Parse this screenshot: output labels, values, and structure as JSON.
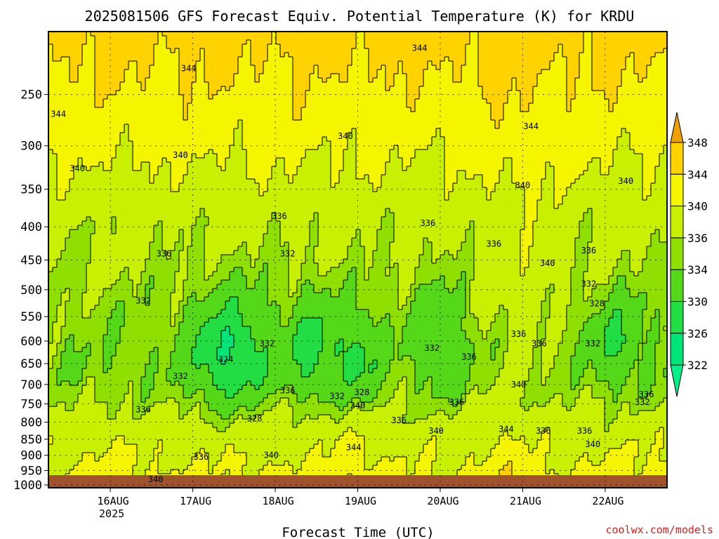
{
  "chart_data": {
    "type": "heatmap",
    "title": "2025081506 GFS Forecast Equiv. Potential Temperature (K) for KRDU",
    "xlabel": "Forecast Time (UTC)",
    "ylabel": "",
    "x_ticks": [
      {
        "value": 16,
        "label": "16AUG",
        "sublabel": "2025"
      },
      {
        "value": 17,
        "label": "17AUG",
        "sublabel": ""
      },
      {
        "value": 18,
        "label": "18AUG",
        "sublabel": ""
      },
      {
        "value": 19,
        "label": "19AUG",
        "sublabel": ""
      },
      {
        "value": 20,
        "label": "20AUG",
        "sublabel": ""
      },
      {
        "value": 21,
        "label": "21AUG",
        "sublabel": ""
      },
      {
        "value": 22,
        "label": "22AUG",
        "sublabel": ""
      }
    ],
    "xlim": [
      15.25,
      22.75
    ],
    "y_ticks": [
      250,
      300,
      350,
      400,
      450,
      500,
      550,
      600,
      650,
      700,
      750,
      800,
      850,
      900,
      950,
      1000
    ],
    "ylim": [
      200,
      1010
    ],
    "y_scale": "log",
    "grid": true,
    "levels": [
      322,
      326,
      330,
      334,
      336,
      340,
      344,
      348
    ],
    "colorbar_ticks": [
      "348",
      "344",
      "340",
      "336",
      "334",
      "330",
      "326",
      "322"
    ],
    "colors": [
      "#00e57a",
      "#22dd44",
      "#55d818",
      "#8fe000",
      "#c8f000",
      "#f5f500",
      "#ffd200",
      "#f0a000"
    ],
    "below_color": "#00f08a",
    "ground_color": "#a0522d",
    "contour_labels": [
      {
        "x": 16.95,
        "y": 228,
        "text": "344"
      },
      {
        "x": 19.75,
        "y": 212,
        "text": "344"
      },
      {
        "x": 15.37,
        "y": 268,
        "text": "344"
      },
      {
        "x": 21.1,
        "y": 280,
        "text": "344"
      },
      {
        "x": 15.6,
        "y": 325,
        "text": "340"
      },
      {
        "x": 16.85,
        "y": 310,
        "text": "340"
      },
      {
        "x": 18.85,
        "y": 290,
        "text": "340"
      },
      {
        "x": 21.0,
        "y": 345,
        "text": "340"
      },
      {
        "x": 22.25,
        "y": 340,
        "text": "340"
      },
      {
        "x": 21.3,
        "y": 455,
        "text": "340"
      },
      {
        "x": 18.05,
        "y": 385,
        "text": "336"
      },
      {
        "x": 19.85,
        "y": 395,
        "text": "336"
      },
      {
        "x": 20.65,
        "y": 425,
        "text": "336"
      },
      {
        "x": 16.65,
        "y": 440,
        "text": "336"
      },
      {
        "x": 21.8,
        "y": 435,
        "text": "336"
      },
      {
        "x": 18.15,
        "y": 440,
        "text": "332"
      },
      {
        "x": 16.4,
        "y": 520,
        "text": "332"
      },
      {
        "x": 21.8,
        "y": 490,
        "text": "332"
      },
      {
        "x": 21.9,
        "y": 525,
        "text": "328"
      },
      {
        "x": 17.4,
        "y": 640,
        "text": "324"
      },
      {
        "x": 16.85,
        "y": 680,
        "text": "332"
      },
      {
        "x": 17.9,
        "y": 605,
        "text": "332"
      },
      {
        "x": 19.9,
        "y": 615,
        "text": "332"
      },
      {
        "x": 21.85,
        "y": 605,
        "text": "332"
      },
      {
        "x": 20.35,
        "y": 635,
        "text": "336"
      },
      {
        "x": 20.95,
        "y": 585,
        "text": "336"
      },
      {
        "x": 21.2,
        "y": 605,
        "text": "336"
      },
      {
        "x": 20.95,
        "y": 700,
        "text": "340"
      },
      {
        "x": 18.15,
        "y": 715,
        "text": "336"
      },
      {
        "x": 18.75,
        "y": 730,
        "text": "332"
      },
      {
        "x": 19.05,
        "y": 720,
        "text": "328"
      },
      {
        "x": 19.0,
        "y": 755,
        "text": "340"
      },
      {
        "x": 22.5,
        "y": 725,
        "text": "336"
      },
      {
        "x": 22.45,
        "y": 745,
        "text": "332"
      },
      {
        "x": 16.4,
        "y": 765,
        "text": "336"
      },
      {
        "x": 17.75,
        "y": 790,
        "text": "328"
      },
      {
        "x": 19.5,
        "y": 795,
        "text": "336"
      },
      {
        "x": 20.2,
        "y": 745,
        "text": "336"
      },
      {
        "x": 19.95,
        "y": 825,
        "text": "340"
      },
      {
        "x": 20.8,
        "y": 820,
        "text": "344"
      },
      {
        "x": 21.25,
        "y": 825,
        "text": "336"
      },
      {
        "x": 21.75,
        "y": 825,
        "text": "336"
      },
      {
        "x": 21.85,
        "y": 865,
        "text": "340"
      },
      {
        "x": 18.95,
        "y": 875,
        "text": "344"
      },
      {
        "x": 17.95,
        "y": 900,
        "text": "340"
      },
      {
        "x": 17.1,
        "y": 905,
        "text": "336"
      },
      {
        "x": 16.55,
        "y": 980,
        "text": "340"
      }
    ]
  },
  "credit": "coolwx.com/models"
}
